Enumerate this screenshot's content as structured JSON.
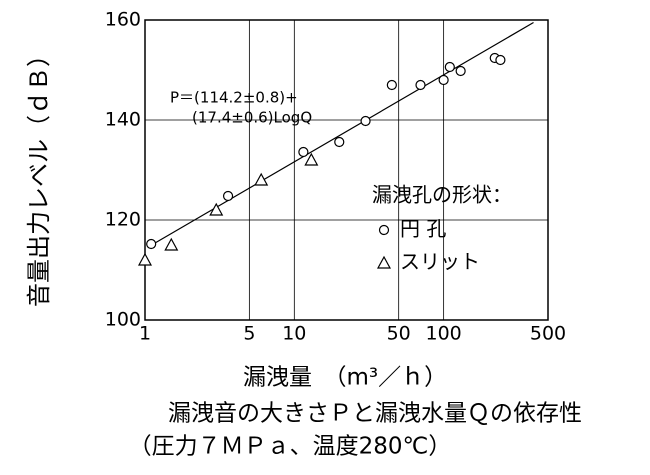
{
  "chart_data": {
    "type": "scatter",
    "annotation": [
      "P＝(114.2±0.8)+",
      "(17.4±0.6)LogQ"
    ],
    "xlabel": "漏洩量　（m³／ｈ）",
    "ylabel": "音量出力レベル（ｄＢ）",
    "caption": [
      "漏洩音の大きさＰと漏洩水量Ｑの依存性",
      "（圧力７ＭＰａ、温度280℃）"
    ],
    "legend_title": "漏洩孔の形状：",
    "xscale": "log",
    "xlim": [
      1,
      500
    ],
    "ylim": [
      100,
      160
    ],
    "xticks": [
      1,
      5,
      10,
      50,
      100,
      500
    ],
    "yticks": [
      100,
      120,
      140,
      160
    ],
    "grid": true,
    "series": [
      {
        "name": "円 孔",
        "marker": "circle",
        "x": [
          1.1,
          3.6,
          11.5,
          20,
          30,
          45,
          70,
          100,
          110,
          130,
          220,
          240
        ],
        "values": [
          115.2,
          124.8,
          133.6,
          135.6,
          139.8,
          147,
          147,
          148,
          150.6,
          149.8,
          152.4,
          152
        ]
      },
      {
        "name": "スリット",
        "marker": "triangle",
        "x": [
          1,
          1.5,
          3,
          6,
          13
        ],
        "values": [
          112,
          115,
          122,
          128,
          132
        ]
      }
    ],
    "fit": {
      "x": [
        1.05,
        400
      ],
      "values": [
        114.6,
        159.5
      ]
    }
  }
}
